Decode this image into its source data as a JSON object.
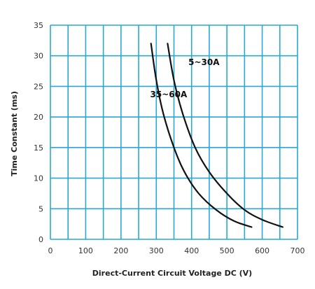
{
  "chart_data": {
    "type": "line",
    "xlabel": "Direct-Current  Circuit Voltage DC (V)",
    "ylabel": "Time Constant (ms)",
    "xlim": [
      0,
      700
    ],
    "ylim": [
      0,
      35
    ],
    "x_ticks": [
      "0",
      "100",
      "200",
      "300",
      "400",
      "500",
      "600",
      "700"
    ],
    "y_ticks": [
      "0",
      "5",
      "10",
      "15",
      "20",
      "25",
      "30",
      "35"
    ],
    "grid": true,
    "grid_color": "#29a8d8",
    "line_color": "#111111",
    "series": [
      {
        "name": "35~60A",
        "points": [
          [
            285,
            32
          ],
          [
            300,
            26
          ],
          [
            320,
            20.5
          ],
          [
            350,
            15
          ],
          [
            380,
            11
          ],
          [
            420,
            7.5
          ],
          [
            470,
            4.8
          ],
          [
            520,
            3.0
          ],
          [
            570,
            2.0
          ]
        ]
      },
      {
        "name": "5~30A",
        "points": [
          [
            332,
            32
          ],
          [
            350,
            26
          ],
          [
            375,
            20.5
          ],
          [
            410,
            15
          ],
          [
            450,
            11
          ],
          [
            500,
            7.5
          ],
          [
            550,
            4.8
          ],
          [
            600,
            3.2
          ],
          [
            658,
            2.0
          ]
        ]
      }
    ],
    "annotations": [
      {
        "text": "5~30A",
        "x": 435,
        "y": 28.5
      },
      {
        "text": "35~60A",
        "x": 335,
        "y": 23.2
      }
    ]
  }
}
